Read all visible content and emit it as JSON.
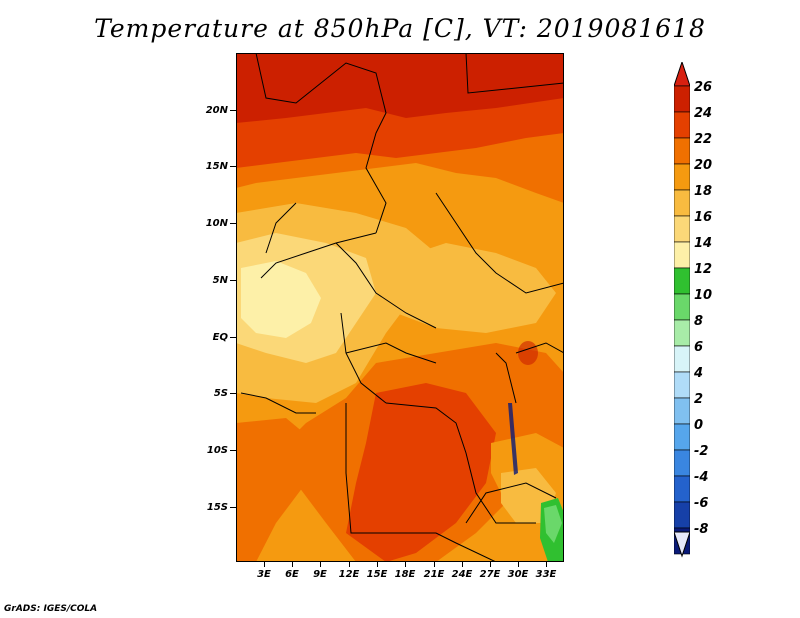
{
  "title": "Temperature at 850hPa [C], VT: 2019081618",
  "footer": "GrADS: IGES/COLA",
  "map": {
    "lat_labels": [
      "20N",
      "15N",
      "10N",
      "5N",
      "EQ",
      "5S",
      "10S",
      "15S"
    ],
    "lon_labels": [
      "3E",
      "6E",
      "9E",
      "12E",
      "15E",
      "18E",
      "21E",
      "24E",
      "27E",
      "30E",
      "33E"
    ]
  },
  "colorbar": {
    "labels": [
      "26",
      "24",
      "22",
      "20",
      "18",
      "16",
      "14",
      "12",
      "10",
      "8",
      "6",
      "4",
      "2",
      "0",
      "-2",
      "-4",
      "-6",
      "-8"
    ],
    "colors": [
      "#cc2000",
      "#e44000",
      "#f07000",
      "#f59a10",
      "#f8bb40",
      "#fbd878",
      "#fdf0a8",
      "#30c030",
      "#6ad86a",
      "#a8eca8",
      "#d8f4f8",
      "#b0dcf8",
      "#80c0f0",
      "#56a6ec",
      "#3a86e0",
      "#2462cc",
      "#1640a8",
      "#0a1a78"
    ],
    "over_color": "#d82010",
    "under_color": "#e6e8fa"
  }
}
